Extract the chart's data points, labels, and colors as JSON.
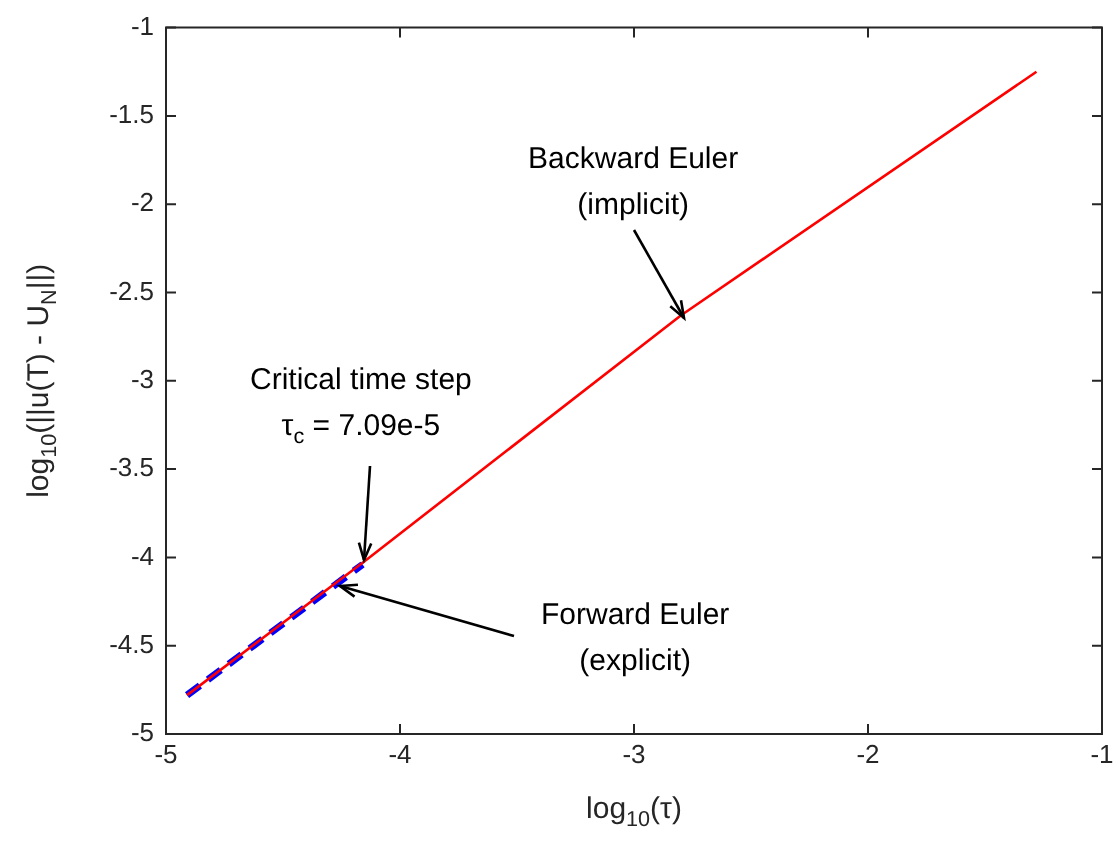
{
  "chart_data": {
    "type": "line",
    "xlabel": "log$_{10}$(τ)",
    "ylabel": "log$_{10}$(||u(T) - U$_{N}$||)",
    "xlim": [
      -5,
      -1
    ],
    "xticks": [
      -5,
      -4,
      -3,
      -2,
      -1
    ],
    "ylim": [
      -5,
      -1
    ],
    "yticks": [
      -5,
      -4.5,
      -4,
      -3.5,
      -3,
      -2.5,
      -2,
      -1.5,
      -1
    ],
    "grid": false,
    "legend": false,
    "marker": "none",
    "series": [
      {
        "color": "#ff0000",
        "line_style": "solid",
        "x": [
          -4.91,
          -4.15,
          -2.8,
          -1.28
        ],
        "values": [
          -4.78,
          -4.02,
          -2.63,
          -1.25
        ]
      },
      {
        "color": "#0000ff",
        "line_style": "dashed",
        "x": [
          -4.91,
          -4.16
        ],
        "values": [
          -4.78,
          -4.04
        ]
      }
    ],
    "annotations": [
      {
        "text": "Backward Euler\n(implicit)",
        "x": -2.79,
        "y": -2.64
      },
      {
        "text": "Critical time step\nτ$_{c}$ = 7.09e-5",
        "x": -4.15,
        "y": -4.02
      },
      {
        "text": "Forward Euler\n(explicit)",
        "x": -4.26,
        "y": -4.16
      }
    ]
  }
}
